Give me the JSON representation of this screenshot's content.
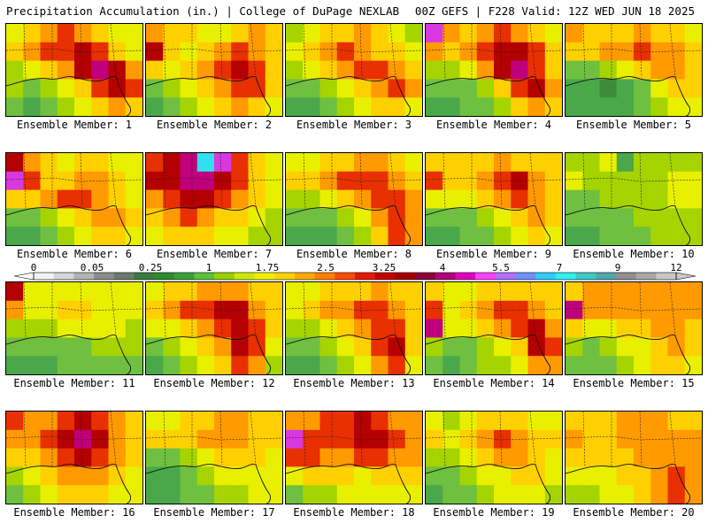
{
  "header": {
    "title_left": "Precipitation Accumulation (in.) | College of DuPage NEXLAB",
    "title_right": "00Z GEFS | F228 Valid: 12Z WED JUN 18 2025"
  },
  "panels": [
    {
      "label": "Ensemble Member: 1",
      "levels": [
        5,
        6,
        7,
        8,
        7,
        6,
        5,
        5,
        6,
        7,
        8,
        8,
        9,
        8,
        6,
        5,
        4,
        5,
        6,
        7,
        9,
        10,
        9,
        7,
        4,
        3,
        4,
        5,
        6,
        8,
        9,
        8,
        3,
        2,
        3,
        4,
        5,
        6,
        7,
        6
      ]
    },
    {
      "label": "Ensemble Member: 2",
      "levels": [
        7,
        6,
        6,
        5,
        5,
        6,
        7,
        6,
        9,
        6,
        5,
        6,
        7,
        8,
        7,
        6,
        6,
        5,
        6,
        7,
        8,
        9,
        8,
        6,
        3,
        4,
        5,
        6,
        7,
        8,
        8,
        6,
        2,
        3,
        4,
        5,
        6,
        7,
        6,
        5
      ]
    },
    {
      "label": "Ensemble Member: 3",
      "levels": [
        4,
        5,
        6,
        6,
        7,
        6,
        5,
        4,
        5,
        6,
        7,
        8,
        7,
        6,
        6,
        5,
        4,
        5,
        6,
        7,
        8,
        8,
        7,
        6,
        3,
        3,
        4,
        5,
        6,
        7,
        8,
        7,
        2,
        2,
        3,
        4,
        5,
        6,
        6,
        5
      ]
    },
    {
      "label": "Ensemble Member: 4",
      "levels": [
        11,
        7,
        6,
        7,
        8,
        7,
        6,
        5,
        7,
        6,
        7,
        8,
        9,
        9,
        8,
        6,
        4,
        4,
        5,
        7,
        9,
        10,
        8,
        6,
        3,
        3,
        3,
        4,
        6,
        8,
        9,
        7,
        2,
        2,
        3,
        3,
        4,
        6,
        7,
        6
      ]
    },
    {
      "label": "Ensemble Member: 5",
      "levels": [
        7,
        6,
        6,
        6,
        7,
        6,
        6,
        5,
        6,
        6,
        7,
        7,
        8,
        7,
        7,
        6,
        3,
        3,
        4,
        5,
        6,
        7,
        7,
        6,
        2,
        2,
        1,
        2,
        3,
        5,
        6,
        6,
        2,
        2,
        2,
        2,
        3,
        4,
        5,
        5
      ]
    },
    {
      "label": "Ensemble Member: 6",
      "levels": [
        9,
        7,
        6,
        5,
        6,
        6,
        5,
        5,
        11,
        8,
        6,
        6,
        7,
        7,
        6,
        5,
        6,
        6,
        7,
        8,
        8,
        7,
        6,
        5,
        3,
        3,
        4,
        5,
        6,
        7,
        7,
        6,
        2,
        2,
        3,
        4,
        5,
        6,
        6,
        5
      ]
    },
    {
      "label": "Ensemble Member: 7",
      "levels": [
        8,
        9,
        10,
        12,
        11,
        8,
        6,
        5,
        9,
        9,
        10,
        10,
        9,
        8,
        6,
        5,
        7,
        8,
        9,
        9,
        8,
        7,
        6,
        5,
        6,
        7,
        8,
        7,
        6,
        6,
        5,
        4,
        5,
        6,
        6,
        6,
        5,
        5,
        4,
        4
      ]
    },
    {
      "label": "Ensemble Member: 8",
      "levels": [
        5,
        5,
        6,
        6,
        7,
        7,
        6,
        5,
        6,
        6,
        7,
        8,
        8,
        8,
        7,
        6,
        4,
        4,
        5,
        6,
        7,
        8,
        8,
        7,
        3,
        3,
        3,
        4,
        5,
        7,
        8,
        7,
        2,
        2,
        2,
        3,
        4,
        6,
        8,
        7
      ]
    },
    {
      "label": "Ensemble Member: 9",
      "levels": [
        6,
        6,
        6,
        6,
        7,
        6,
        6,
        6,
        8,
        6,
        6,
        7,
        8,
        9,
        7,
        6,
        5,
        5,
        5,
        6,
        7,
        8,
        7,
        6,
        3,
        3,
        3,
        4,
        5,
        6,
        7,
        6,
        2,
        2,
        3,
        3,
        4,
        5,
        6,
        5
      ]
    },
    {
      "label": "Ensemble Member: 10",
      "levels": [
        4,
        4,
        5,
        2,
        4,
        4,
        4,
        4,
        5,
        4,
        4,
        4,
        4,
        4,
        5,
        5,
        3,
        3,
        4,
        4,
        4,
        4,
        5,
        5,
        3,
        3,
        3,
        3,
        4,
        4,
        4,
        4,
        2,
        2,
        3,
        3,
        3,
        4,
        4,
        4
      ]
    },
    {
      "label": "Ensemble Member: 11",
      "levels": [
        9,
        5,
        5,
        5,
        5,
        5,
        5,
        5,
        7,
        5,
        5,
        6,
        6,
        5,
        5,
        5,
        4,
        4,
        4,
        5,
        5,
        5,
        5,
        4,
        3,
        3,
        3,
        3,
        3,
        4,
        4,
        4,
        2,
        2,
        2,
        3,
        3,
        3,
        3,
        3
      ]
    },
    {
      "label": "Ensemble Member: 12",
      "levels": [
        5,
        6,
        6,
        7,
        7,
        7,
        6,
        6,
        6,
        7,
        8,
        8,
        9,
        9,
        7,
        6,
        5,
        5,
        6,
        7,
        8,
        9,
        8,
        6,
        3,
        4,
        5,
        6,
        7,
        9,
        8,
        5,
        2,
        3,
        4,
        5,
        6,
        8,
        7,
        4
      ]
    },
    {
      "label": "Ensemble Member: 13",
      "levels": [
        5,
        5,
        6,
        6,
        6,
        7,
        6,
        6,
        5,
        6,
        7,
        7,
        8,
        8,
        7,
        6,
        4,
        4,
        5,
        6,
        7,
        8,
        8,
        6,
        3,
        3,
        4,
        5,
        6,
        8,
        9,
        6,
        2,
        2,
        3,
        4,
        5,
        7,
        8,
        5
      ]
    },
    {
      "label": "Ensemble Member: 14",
      "levels": [
        6,
        5,
        5,
        6,
        6,
        6,
        6,
        6,
        8,
        5,
        6,
        7,
        8,
        8,
        7,
        6,
        10,
        5,
        5,
        6,
        7,
        8,
        9,
        7,
        4,
        3,
        3,
        4,
        5,
        6,
        9,
        8,
        3,
        2,
        3,
        4,
        4,
        5,
        7,
        7
      ]
    },
    {
      "label": "Ensemble Member: 15",
      "levels": [
        6,
        7,
        7,
        7,
        7,
        7,
        7,
        7,
        10,
        7,
        7,
        7,
        7,
        7,
        7,
        7,
        6,
        5,
        5,
        6,
        6,
        7,
        7,
        6,
        4,
        3,
        4,
        5,
        5,
        6,
        7,
        6,
        3,
        3,
        3,
        4,
        5,
        6,
        6,
        5
      ]
    },
    {
      "label": "Ensemble Member: 16",
      "levels": [
        8,
        7,
        7,
        8,
        9,
        8,
        7,
        6,
        7,
        7,
        8,
        9,
        10,
        9,
        7,
        6,
        6,
        6,
        7,
        8,
        9,
        8,
        7,
        6,
        4,
        5,
        6,
        7,
        7,
        7,
        6,
        5,
        3,
        4,
        5,
        6,
        6,
        6,
        5,
        5
      ]
    },
    {
      "label": "Ensemble Member: 17",
      "levels": [
        5,
        5,
        6,
        6,
        7,
        7,
        6,
        6,
        6,
        6,
        6,
        7,
        7,
        7,
        6,
        6,
        3,
        3,
        4,
        5,
        6,
        6,
        6,
        5,
        2,
        2,
        3,
        4,
        5,
        5,
        5,
        5,
        2,
        2,
        3,
        3,
        4,
        4,
        5,
        5
      ]
    },
    {
      "label": "Ensemble Member: 18",
      "levels": [
        7,
        7,
        8,
        8,
        9,
        8,
        7,
        7,
        11,
        8,
        8,
        8,
        9,
        9,
        8,
        7,
        8,
        8,
        7,
        7,
        8,
        8,
        7,
        7,
        5,
        6,
        6,
        6,
        5,
        6,
        6,
        6,
        3,
        4,
        4,
        5,
        5,
        5,
        5,
        5
      ]
    },
    {
      "label": "Ensemble Member: 19",
      "levels": [
        5,
        4,
        5,
        6,
        6,
        6,
        5,
        5,
        6,
        5,
        6,
        7,
        8,
        7,
        6,
        6,
        4,
        4,
        5,
        6,
        7,
        7,
        6,
        5,
        3,
        3,
        4,
        5,
        5,
        6,
        6,
        5,
        2,
        3,
        3,
        4,
        5,
        5,
        5,
        4
      ]
    },
    {
      "label": "Ensemble Member: 20",
      "levels": [
        6,
        6,
        6,
        7,
        7,
        7,
        6,
        6,
        7,
        6,
        6,
        7,
        7,
        7,
        7,
        7,
        6,
        6,
        6,
        6,
        7,
        7,
        7,
        7,
        5,
        5,
        5,
        6,
        6,
        7,
        8,
        7,
        4,
        4,
        5,
        5,
        6,
        7,
        8,
        7
      ]
    }
  ],
  "colorbar": {
    "tick_labels": [
      "0",
      "0.05",
      "0.25",
      "1",
      "1.75",
      "2.5",
      "3.25",
      "4",
      "5.5",
      "7",
      "9",
      "12"
    ],
    "colors": [
      "#f2f2f2",
      "#d6d6d6",
      "#b4b4b4",
      "#8c8c8c",
      "#6b7b6b",
      "#3c7a3c",
      "#2e8b2e",
      "#3aa03a",
      "#5fc03a",
      "#9ad000",
      "#ccea00",
      "#f0f000",
      "#ffd200",
      "#ffaa00",
      "#ff7f00",
      "#ff4a00",
      "#e51a00",
      "#c40000",
      "#a30000",
      "#8c003a",
      "#b4007a",
      "#e000c0",
      "#ff40ff",
      "#b070ff",
      "#7090ff",
      "#30ccff",
      "#30f0f0",
      "#40c8c8",
      "#50a8a8",
      "#909090",
      "#a8a8a8",
      "#c8c8c8"
    ]
  }
}
